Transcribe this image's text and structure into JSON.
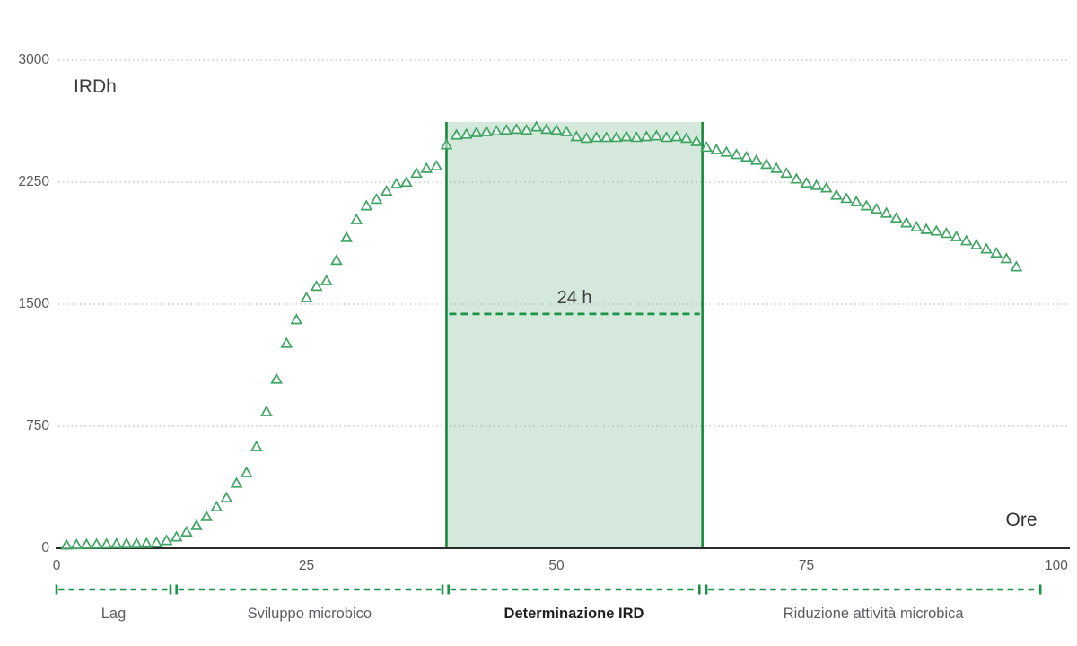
{
  "chart_data": {
    "type": "scatter",
    "title": "",
    "xlabel": "Ore",
    "ylabel": "IRDh",
    "xlim": [
      0,
      100
    ],
    "ylim": [
      0,
      3000
    ],
    "xticks": [
      0,
      25,
      50,
      75,
      100
    ],
    "yticks": [
      0,
      750,
      1500,
      2250,
      3000
    ],
    "grid": "horizontal dotted gridlines at 750/1500/2250/3000, solid x-axis",
    "legend": "none",
    "series": [
      {
        "name": "IRDh",
        "marker": "open-triangle",
        "color": "#3fa463",
        "x": [
          1,
          2,
          3,
          4,
          5,
          6,
          7,
          8,
          9,
          10,
          11,
          12,
          13,
          14,
          15,
          16,
          17,
          18,
          19,
          20,
          21,
          22,
          23,
          24,
          25,
          26,
          27,
          28,
          29,
          30,
          31,
          32,
          33,
          34,
          35,
          36,
          37,
          38,
          39,
          40,
          41,
          42,
          43,
          44,
          45,
          46,
          47,
          48,
          49,
          50,
          51,
          52,
          53,
          54,
          55,
          56,
          57,
          58,
          59,
          60,
          61,
          62,
          63,
          64,
          65,
          66,
          67,
          68,
          69,
          70,
          71,
          72,
          73,
          74,
          75,
          76,
          77,
          78,
          79,
          80,
          81,
          82,
          83,
          84,
          85,
          86,
          87,
          88,
          89,
          90,
          91,
          92,
          93,
          94,
          95,
          96
        ],
        "y": [
          20,
          22,
          24,
          25,
          26,
          27,
          28,
          29,
          30,
          34,
          48,
          70,
          100,
          140,
          195,
          255,
          310,
          400,
          465,
          625,
          840,
          1040,
          1260,
          1405,
          1540,
          1610,
          1645,
          1770,
          1910,
          2020,
          2105,
          2145,
          2195,
          2240,
          2250,
          2305,
          2335,
          2350,
          2480,
          2540,
          2545,
          2555,
          2560,
          2565,
          2570,
          2575,
          2570,
          2590,
          2575,
          2570,
          2560,
          2530,
          2520,
          2525,
          2525,
          2525,
          2530,
          2525,
          2530,
          2535,
          2525,
          2530,
          2520,
          2500,
          2465,
          2450,
          2435,
          2420,
          2405,
          2385,
          2360,
          2335,
          2305,
          2270,
          2245,
          2230,
          2215,
          2170,
          2150,
          2130,
          2105,
          2085,
          2060,
          2030,
          2000,
          1975,
          1960,
          1950,
          1935,
          1915,
          1890,
          1865,
          1840,
          1815,
          1780,
          1730
        ]
      }
    ],
    "highlight_region": {
      "label": "24 h",
      "x_start": 39.0,
      "x_end": 64.6,
      "y_top": 2620,
      "dashed_line_y": 1440,
      "fill": "rgba(27,138,62,0.19)",
      "border_color": "#1a8a3e",
      "dash_color": "#1b9447"
    },
    "phases": [
      {
        "label": "Lag",
        "x_start": 0.0,
        "x_end": 11.4,
        "emphasis": false
      },
      {
        "label": "Sviluppo microbico",
        "x_start": 12.0,
        "x_end": 38.6,
        "emphasis": false
      },
      {
        "label": "Determinazione IRD",
        "x_start": 39.2,
        "x_end": 64.3,
        "emphasis": true
      },
      {
        "label": "Riduzione attività microbica",
        "x_start": 65.0,
        "x_end": 98.4,
        "emphasis": false
      }
    ]
  },
  "colors": {
    "marker_green": "#3fa463",
    "region_border_green": "#1a8a3e",
    "dash_green": "#1b9447",
    "gridline_gray": "#bdbdbd",
    "axis_dark": "#2b2b2b",
    "tick_text_gray": "#595959",
    "phase_text_gray": "#5a5e62"
  }
}
